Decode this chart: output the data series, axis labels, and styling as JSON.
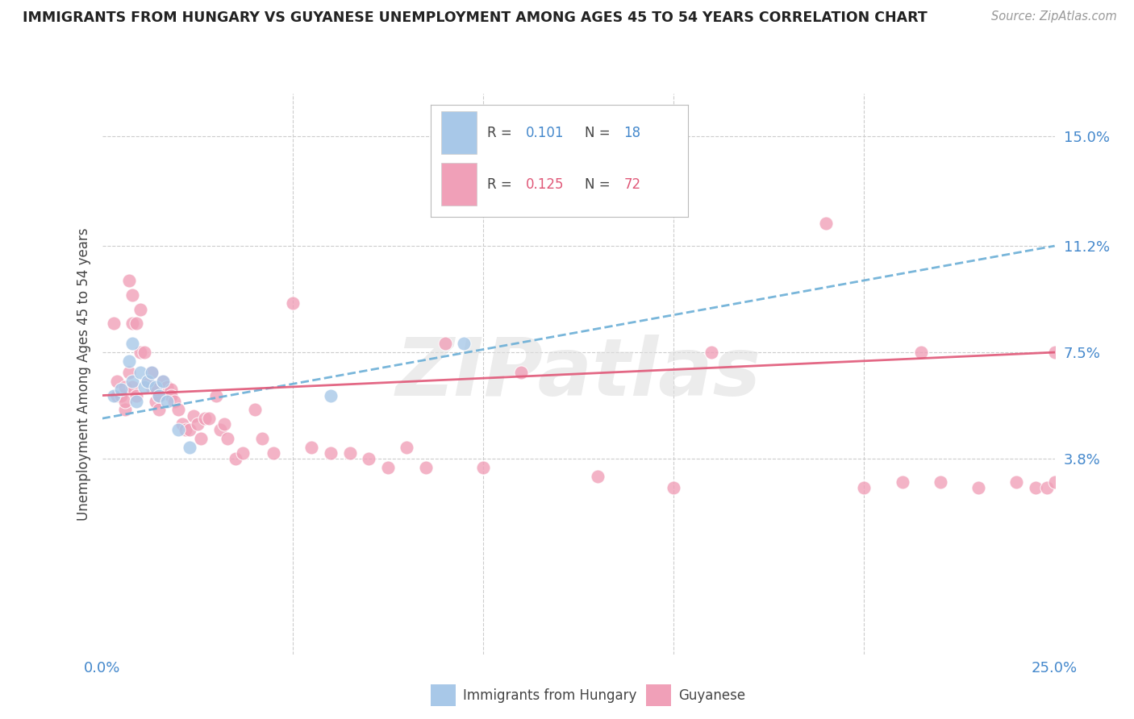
{
  "title": "IMMIGRANTS FROM HUNGARY VS GUYANESE UNEMPLOYMENT AMONG AGES 45 TO 54 YEARS CORRELATION CHART",
  "source": "Source: ZipAtlas.com",
  "ylabel": "Unemployment Among Ages 45 to 54 years",
  "xlim": [
    0.0,
    0.25
  ],
  "ylim": [
    -0.03,
    0.165
  ],
  "yticks": [
    0.038,
    0.075,
    0.112,
    0.15
  ],
  "ytick_labels": [
    "3.8%",
    "7.5%",
    "11.2%",
    "15.0%"
  ],
  "xticks": [
    0.0,
    0.05,
    0.1,
    0.15,
    0.2,
    0.25
  ],
  "xtick_labels": [
    "0.0%",
    "",
    "",
    "",
    "",
    "25.0%"
  ],
  "color_hungary": "#a8c8e8",
  "color_guyanese": "#f0a0b8",
  "trend_color_hungary": "#6aaed6",
  "trend_color_guyanese": "#e05878",
  "watermark": "ZIPatlas",
  "background_color": "#ffffff",
  "grid_color": "#cccccc",
  "hun_x": [
    0.003,
    0.005,
    0.007,
    0.008,
    0.008,
    0.009,
    0.01,
    0.011,
    0.012,
    0.013,
    0.014,
    0.015,
    0.016,
    0.017,
    0.02,
    0.023,
    0.06,
    0.095
  ],
  "hun_y": [
    0.06,
    0.062,
    0.072,
    0.078,
    0.065,
    0.058,
    0.068,
    0.063,
    0.065,
    0.068,
    0.063,
    0.06,
    0.065,
    0.058,
    0.048,
    0.042,
    0.06,
    0.078
  ],
  "guy_x": [
    0.003,
    0.004,
    0.004,
    0.005,
    0.006,
    0.006,
    0.006,
    0.007,
    0.007,
    0.008,
    0.008,
    0.008,
    0.009,
    0.009,
    0.01,
    0.01,
    0.011,
    0.012,
    0.013,
    0.013,
    0.014,
    0.014,
    0.015,
    0.015,
    0.016,
    0.017,
    0.018,
    0.018,
    0.019,
    0.02,
    0.021,
    0.022,
    0.023,
    0.024,
    0.025,
    0.026,
    0.027,
    0.028,
    0.03,
    0.031,
    0.032,
    0.033,
    0.035,
    0.037,
    0.04,
    0.042,
    0.045,
    0.05,
    0.055,
    0.06,
    0.065,
    0.07,
    0.075,
    0.08,
    0.085,
    0.09,
    0.1,
    0.11,
    0.13,
    0.15,
    0.16,
    0.19,
    0.2,
    0.21,
    0.215,
    0.22,
    0.23,
    0.24,
    0.245,
    0.248,
    0.25,
    0.25
  ],
  "guy_y": [
    0.085,
    0.06,
    0.065,
    0.06,
    0.055,
    0.063,
    0.058,
    0.1,
    0.068,
    0.095,
    0.085,
    0.063,
    0.085,
    0.06,
    0.075,
    0.09,
    0.075,
    0.065,
    0.068,
    0.063,
    0.058,
    0.062,
    0.055,
    0.06,
    0.065,
    0.063,
    0.062,
    0.06,
    0.058,
    0.055,
    0.05,
    0.048,
    0.048,
    0.053,
    0.05,
    0.045,
    0.052,
    0.052,
    0.06,
    0.048,
    0.05,
    0.045,
    0.038,
    0.04,
    0.055,
    0.045,
    0.04,
    0.092,
    0.042,
    0.04,
    0.04,
    0.038,
    0.035,
    0.042,
    0.035,
    0.078,
    0.035,
    0.068,
    0.032,
    0.028,
    0.075,
    0.12,
    0.028,
    0.03,
    0.075,
    0.03,
    0.028,
    0.03,
    0.028,
    0.028,
    0.03,
    0.075
  ]
}
